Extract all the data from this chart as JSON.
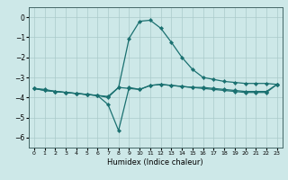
{
  "xlabel": "Humidex (Indice chaleur)",
  "ylabel": "",
  "background_color": "#cde8e8",
  "grid_color": "#aacaca",
  "line_color": "#1a7070",
  "xlim": [
    -0.5,
    23.5
  ],
  "ylim": [
    -6.5,
    0.5
  ],
  "yticks": [
    0,
    -1,
    -2,
    -3,
    -4,
    -5,
    -6
  ],
  "xticks": [
    0,
    1,
    2,
    3,
    4,
    5,
    6,
    7,
    8,
    9,
    10,
    11,
    12,
    13,
    14,
    15,
    16,
    17,
    18,
    19,
    20,
    21,
    22,
    23
  ],
  "series_raw": {
    "line1_x": [
      0,
      1,
      2,
      3,
      4,
      5,
      6,
      7,
      8,
      9,
      10,
      11,
      12,
      13,
      14,
      15,
      16,
      17,
      18,
      19,
      20,
      21,
      22,
      23
    ],
    "line1_y": [
      -3.55,
      -3.6,
      -3.7,
      -3.75,
      -3.8,
      -3.85,
      -3.9,
      -3.95,
      -3.5,
      -3.55,
      -3.6,
      -3.4,
      -3.35,
      -3.4,
      -3.45,
      -3.5,
      -3.5,
      -3.55,
      -3.6,
      -3.65,
      -3.7,
      -3.7,
      -3.7,
      -3.35
    ],
    "line2_x": [
      0,
      1,
      2,
      3,
      4,
      5,
      6,
      7,
      8,
      9,
      10,
      11,
      12,
      13,
      14,
      15,
      16,
      17,
      18,
      19,
      20,
      21,
      22,
      23
    ],
    "line2_y": [
      -3.55,
      -3.65,
      -3.7,
      -3.75,
      -3.8,
      -3.85,
      -3.9,
      -4.35,
      -5.65,
      -3.5,
      -3.6,
      -3.4,
      -3.35,
      -3.4,
      -3.45,
      -3.5,
      -3.55,
      -3.6,
      -3.65,
      -3.7,
      -3.75,
      -3.75,
      -3.75,
      -3.35
    ],
    "line3_x": [
      0,
      1,
      2,
      3,
      4,
      5,
      6,
      7,
      8,
      9,
      10,
      11,
      12,
      13,
      14,
      15,
      16,
      17,
      18,
      19,
      20,
      21,
      22,
      23
    ],
    "line3_y": [
      -3.55,
      -3.65,
      -3.7,
      -3.75,
      -3.8,
      -3.85,
      -3.9,
      -4.0,
      -3.5,
      -1.05,
      -0.2,
      -0.15,
      -0.55,
      -1.25,
      -2.0,
      -2.6,
      -3.0,
      -3.1,
      -3.2,
      -3.25,
      -3.3,
      -3.3,
      -3.3,
      -3.35
    ]
  }
}
